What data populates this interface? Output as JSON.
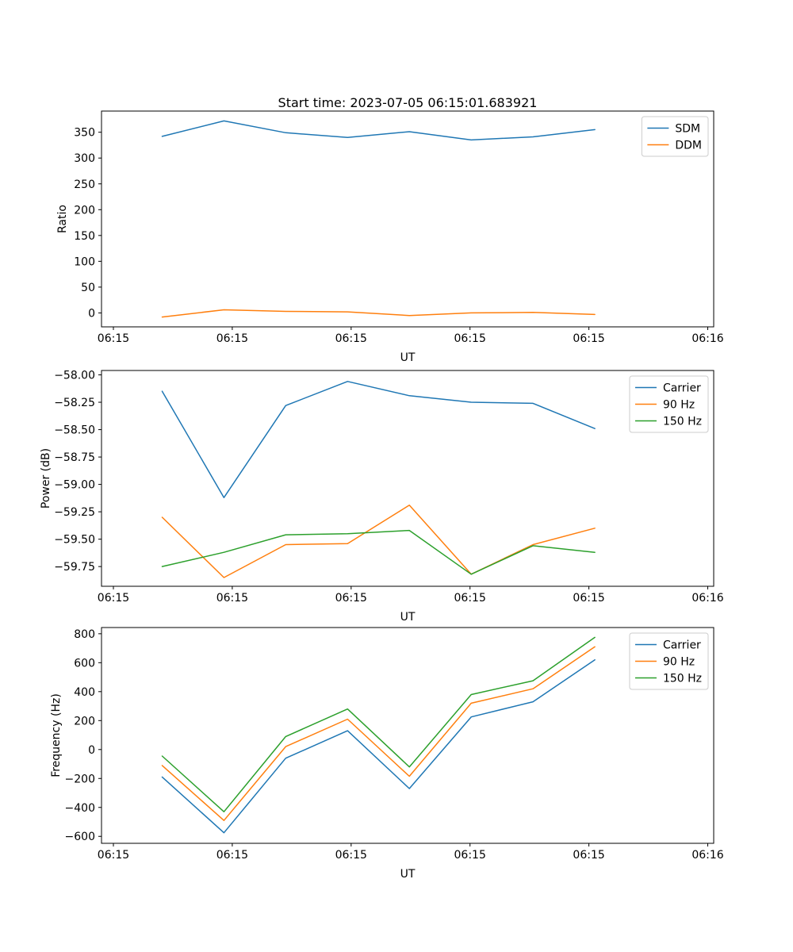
{
  "figure": {
    "background": "#ffffff",
    "axis_color": "#000000"
  },
  "chart_data": [
    {
      "type": "line",
      "title": "Start time: 2023-07-05 06:15:01.683921",
      "xlabel": "UT",
      "ylabel": "Ratio",
      "x": [
        0.41,
        0.93,
        1.45,
        1.97,
        2.49,
        3.01,
        3.53,
        4.05
      ],
      "xlim": [
        -0.1,
        5.05
      ],
      "xticks": [
        0,
        1,
        2,
        3,
        4,
        5
      ],
      "xtick_labels": [
        "06:15",
        "06:15",
        "06:15",
        "06:15",
        "06:15",
        "06:16"
      ],
      "ylim": [
        -27,
        391
      ],
      "yticks": [
        0,
        50,
        100,
        150,
        200,
        250,
        300,
        350
      ],
      "ytick_labels": [
        "0",
        "50",
        "100",
        "150",
        "200",
        "250",
        "300",
        "350"
      ],
      "grid": false,
      "legend_position": "upper right",
      "series": [
        {
          "name": "SDM",
          "color": "#1f77b4",
          "values": [
            342,
            372,
            349,
            340,
            351,
            335,
            341,
            355
          ]
        },
        {
          "name": "DDM",
          "color": "#ff7f0e",
          "values": [
            -8,
            6,
            3,
            2,
            -5,
            0,
            1,
            -3
          ]
        }
      ]
    },
    {
      "type": "line",
      "title": "",
      "xlabel": "UT",
      "ylabel": "Power (dB)",
      "x": [
        0.41,
        0.93,
        1.45,
        1.97,
        2.49,
        3.01,
        3.53,
        4.05
      ],
      "xlim": [
        -0.1,
        5.05
      ],
      "xticks": [
        0,
        1,
        2,
        3,
        4,
        5
      ],
      "xtick_labels": [
        "06:15",
        "06:15",
        "06:15",
        "06:15",
        "06:15",
        "06:16"
      ],
      "ylim": [
        -59.93,
        -57.96
      ],
      "yticks": [
        -59.75,
        -59.5,
        -59.25,
        -59.0,
        -58.75,
        -58.5,
        -58.25,
        -58.0
      ],
      "ytick_labels": [
        "−59.75",
        "−59.50",
        "−59.25",
        "−59.00",
        "−58.75",
        "−58.50",
        "−58.25",
        "−58.00"
      ],
      "grid": false,
      "legend_position": "upper right",
      "series": [
        {
          "name": "Carrier",
          "color": "#1f77b4",
          "values": [
            -58.15,
            -59.12,
            -58.28,
            -58.06,
            -58.19,
            -58.25,
            -58.26,
            -58.49
          ]
        },
        {
          "name": "90 Hz",
          "color": "#ff7f0e",
          "values": [
            -59.3,
            -59.85,
            -59.55,
            -59.54,
            -59.19,
            -59.82,
            -59.55,
            -59.4
          ]
        },
        {
          "name": "150 Hz",
          "color": "#2ca02c",
          "values": [
            -59.75,
            -59.62,
            -59.46,
            -59.45,
            -59.42,
            -59.82,
            -59.56,
            -59.62
          ]
        }
      ]
    },
    {
      "type": "line",
      "title": "",
      "xlabel": "UT",
      "ylabel": "Frequency (Hz)",
      "x": [
        0.41,
        0.93,
        1.45,
        1.97,
        2.49,
        3.01,
        3.53,
        4.05
      ],
      "xlim": [
        -0.1,
        5.05
      ],
      "xticks": [
        0,
        1,
        2,
        3,
        4,
        5
      ],
      "xtick_labels": [
        "06:15",
        "06:15",
        "06:15",
        "06:15",
        "06:15",
        "06:16"
      ],
      "ylim": [
        -648,
        843
      ],
      "yticks": [
        -600,
        -400,
        -200,
        0,
        200,
        400,
        600,
        800
      ],
      "ytick_labels": [
        "−600",
        "−400",
        "−200",
        "0",
        "200",
        "400",
        "600",
        "800"
      ],
      "grid": false,
      "legend_position": "upper right",
      "series": [
        {
          "name": "Carrier",
          "color": "#1f77b4",
          "values": [
            -190,
            -575,
            -60,
            130,
            -270,
            225,
            330,
            620
          ]
        },
        {
          "name": "90 Hz",
          "color": "#ff7f0e",
          "values": [
            -110,
            -490,
            20,
            210,
            -185,
            320,
            420,
            710
          ]
        },
        {
          "name": "150 Hz",
          "color": "#2ca02c",
          "values": [
            -45,
            -430,
            90,
            280,
            -120,
            380,
            475,
            775
          ]
        }
      ]
    }
  ]
}
